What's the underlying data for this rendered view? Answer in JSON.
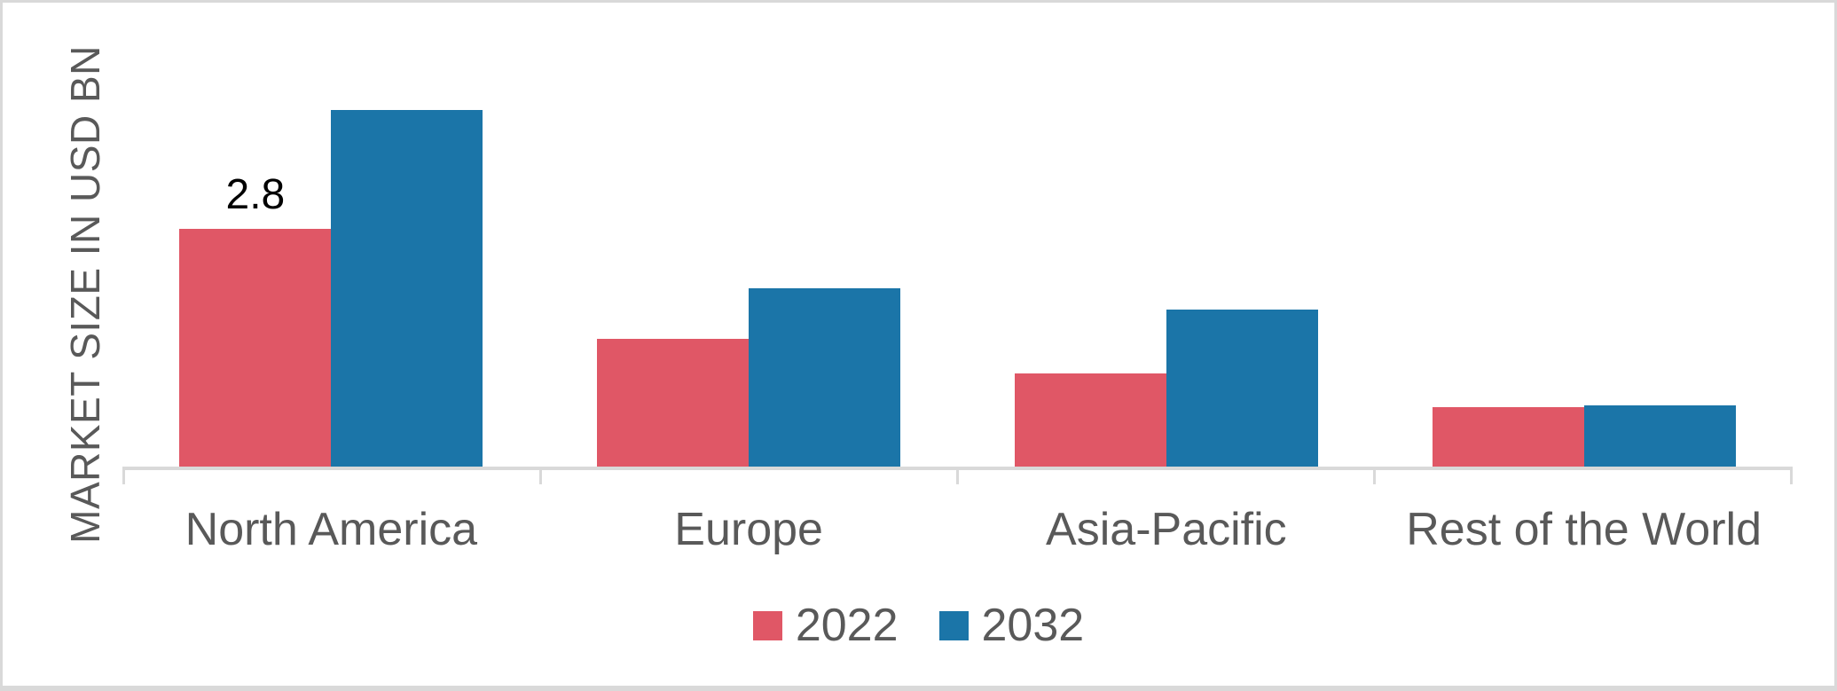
{
  "chart_data": {
    "type": "bar",
    "title": "",
    "xlabel": "",
    "ylabel": "MARKET SIZE IN USD BN",
    "categories": [
      "North America",
      "Europe",
      "Asia-Pacific",
      "Rest of the World"
    ],
    "series": [
      {
        "name": "2022",
        "color": "#e05766",
        "values": [
          2.8,
          1.5,
          1.1,
          0.7
        ]
      },
      {
        "name": "2032",
        "color": "#1b75a8",
        "values": [
          4.2,
          2.1,
          1.85,
          0.72
        ]
      }
    ],
    "data_labels": [
      {
        "category": "North America",
        "series": "2022",
        "text": "2.8"
      }
    ],
    "ylim": [
      0,
      4.6
    ],
    "grid": false,
    "legend_position": "bottom",
    "colors": {
      "axis": "#d9d9d9",
      "frame_border": "#d9d9d9",
      "category_label": "#595959",
      "legend_label": "#595959",
      "data_label": "#000000",
      "background": "#ffffff"
    }
  }
}
